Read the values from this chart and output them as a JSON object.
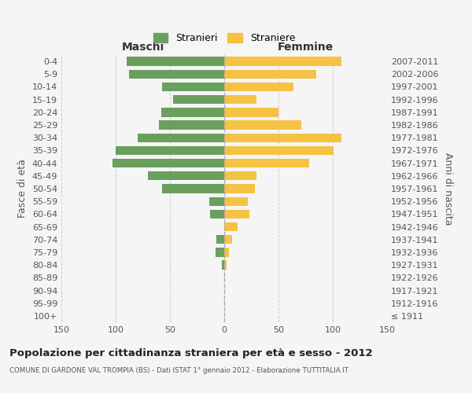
{
  "age_groups": [
    "100+",
    "95-99",
    "90-94",
    "85-89",
    "80-84",
    "75-79",
    "70-74",
    "65-69",
    "60-64",
    "55-59",
    "50-54",
    "45-49",
    "40-44",
    "35-39",
    "30-34",
    "25-29",
    "20-24",
    "15-19",
    "10-14",
    "5-9",
    "0-4"
  ],
  "birth_years": [
    "≤ 1911",
    "1912-1916",
    "1917-1921",
    "1922-1926",
    "1927-1931",
    "1932-1936",
    "1937-1941",
    "1942-1946",
    "1947-1951",
    "1952-1956",
    "1957-1961",
    "1962-1966",
    "1967-1971",
    "1972-1976",
    "1977-1981",
    "1982-1986",
    "1987-1991",
    "1992-1996",
    "1997-2001",
    "2002-2006",
    "2007-2011"
  ],
  "males": [
    0,
    0,
    0,
    0,
    2,
    8,
    7,
    0,
    13,
    14,
    57,
    70,
    103,
    100,
    80,
    60,
    58,
    47,
    57,
    88,
    90
  ],
  "females": [
    0,
    0,
    0,
    0,
    2,
    4,
    7,
    12,
    23,
    22,
    28,
    30,
    78,
    101,
    108,
    71,
    50,
    30,
    64,
    85,
    108
  ],
  "male_color": "#6a9f5e",
  "female_color": "#f5c243",
  "background_color": "#f5f5f5",
  "grid_color": "#cccccc",
  "title": "Popolazione per cittadinanza straniera per età e sesso - 2012",
  "subtitle": "COMUNE DI GARDONE VAL TROMPIA (BS) - Dati ISTAT 1° gennaio 2012 - Elaborazione TUTTITALIA.IT",
  "xlabel_left": "Maschi",
  "xlabel_right": "Femmine",
  "ylabel_left": "Fasce di età",
  "ylabel_right": "Anni di nascita",
  "legend_male": "Stranieri",
  "legend_female": "Straniere",
  "xlim": 150
}
